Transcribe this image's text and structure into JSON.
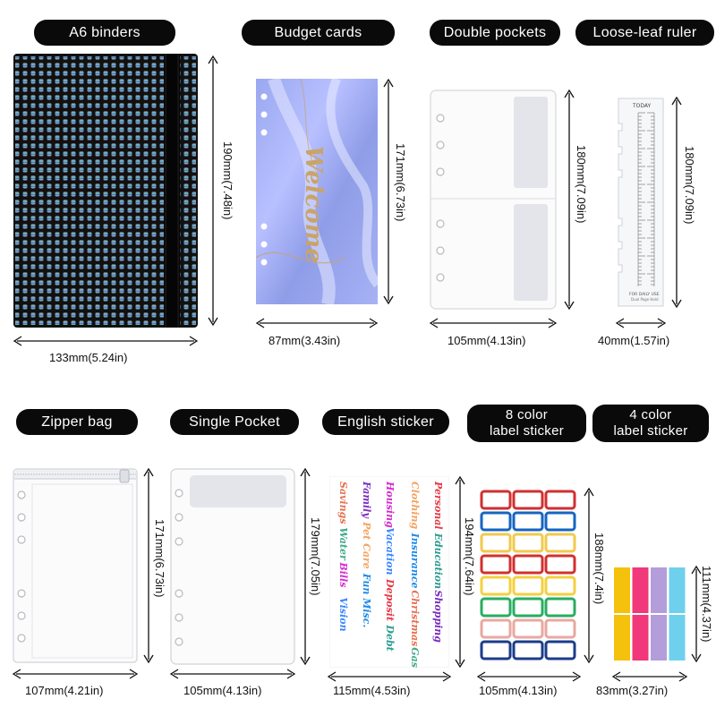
{
  "labels": {
    "a6_binders": "A6 binders",
    "budget_cards": "Budget cards",
    "double_pockets": "Double pockets",
    "ruler": "Loose-leaf ruler",
    "zipper_bag": "Zipper bag",
    "single_pocket": "Single Pocket",
    "english_sticker": "English sticker",
    "eight_color_line1": "8 color",
    "eight_color_line2": "label sticker",
    "four_color_line1": "4 color",
    "four_color_line2": "label sticker"
  },
  "dimensions": {
    "binder_h": "190mm(7.48in)",
    "binder_w": "133mm(5.24in)",
    "card_h": "171mm(6.73in)",
    "card_w": "87mm(3.43in)",
    "double_h": "180mm(7.09in)",
    "double_w": "105mm(4.13in)",
    "ruler_h": "180mm(7.09in)",
    "ruler_w": "40mm(1.57in)",
    "zipper_h": "171mm(6.73in)",
    "zipper_w": "107mm(4.21in)",
    "single_h": "179mm(7.05in)",
    "single_w": "105mm(4.13in)",
    "english_h": "194mm(7.64in)",
    "english_w": "115mm(4.53in)",
    "eight_h": "188mm(7.4in)",
    "eight_w": "105mm(4.13in)",
    "four_h": "111mm(4.37in)",
    "four_w": "83mm(3.27in)"
  },
  "card_script": "Welcome",
  "ruler_text": {
    "top": "TODAY",
    "bottom1": "FOR DAILY USE",
    "bottom2": "Dual Page Hold"
  },
  "english_words": [
    "Personal",
    "Education",
    "Shopping",
    "Clothing",
    "Insurance",
    "Christmas",
    "Gas",
    "Housing",
    "Vacation",
    "Deposit",
    "Debt",
    "Family",
    "Pet Care",
    "Fun Misc.",
    "Savings",
    "Water",
    "Bills",
    "Vision"
  ],
  "colors": {
    "eight_borders": [
      "#d32f2f",
      "#1565c0",
      "#f2c94c",
      "#d32f2f",
      "#f4d03f",
      "#27ae60",
      "#e8a8a0",
      "#1a3c8c"
    ],
    "four_tabs": [
      "#f4c20d",
      "#f0387a",
      "#b39ddb",
      "#6fd0ee"
    ]
  }
}
